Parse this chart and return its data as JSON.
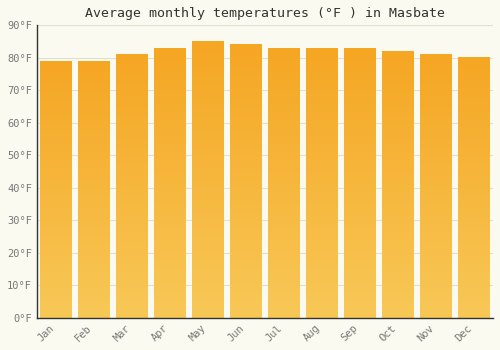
{
  "title": "Average monthly temperatures (°F ) in Masbate",
  "months": [
    "Jan",
    "Feb",
    "Mar",
    "Apr",
    "May",
    "Jun",
    "Jul",
    "Aug",
    "Sep",
    "Oct",
    "Nov",
    "Dec"
  ],
  "values": [
    79,
    79,
    81,
    83,
    85,
    84,
    83,
    83,
    83,
    82,
    81,
    80
  ],
  "bar_color_top": "#F5A623",
  "bar_color_bottom": "#F8C857",
  "background_color": "#FAFAF0",
  "grid_color": "#E0E0D0",
  "ylim": [
    0,
    90
  ],
  "yticks": [
    0,
    10,
    20,
    30,
    40,
    50,
    60,
    70,
    80,
    90
  ],
  "ytick_labels": [
    "0°F",
    "10°F",
    "20°F",
    "30°F",
    "40°F",
    "50°F",
    "60°F",
    "70°F",
    "80°F",
    "90°F"
  ],
  "title_fontsize": 9.5,
  "tick_fontsize": 7.5,
  "font_family": "monospace",
  "bar_width": 0.82
}
